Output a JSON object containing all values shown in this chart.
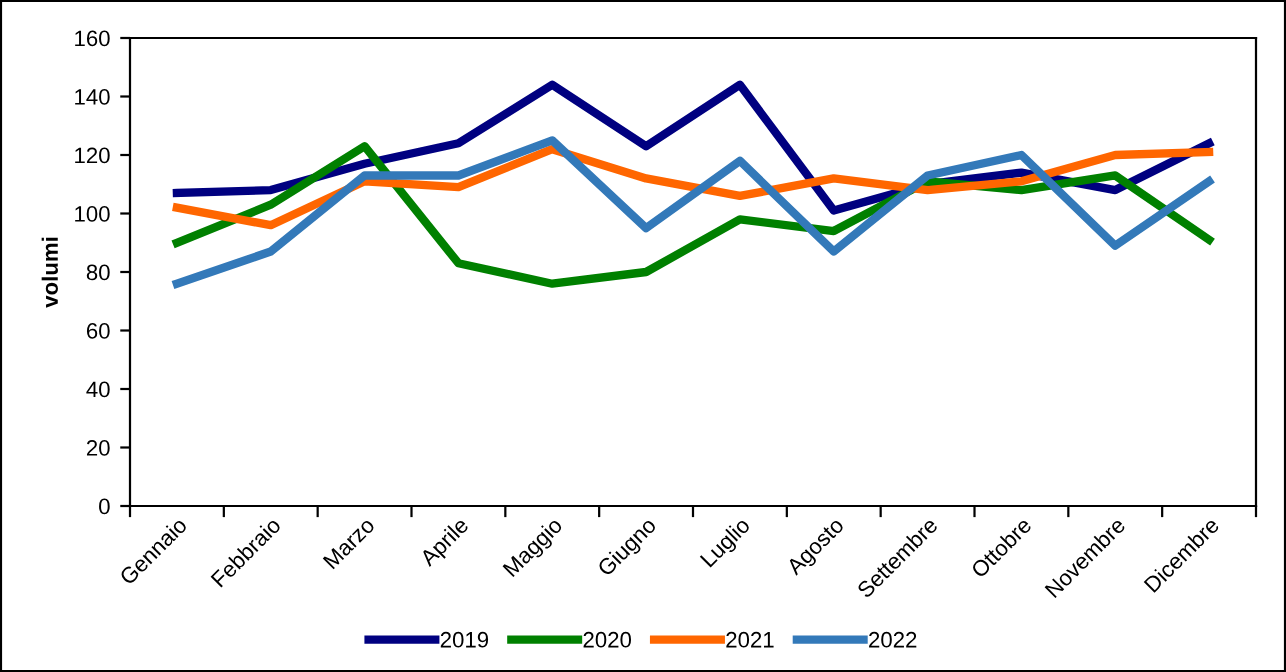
{
  "chart_data": {
    "type": "line",
    "ylabel": "volumi",
    "categories": [
      "Gennaio",
      "Febbraio",
      "Marzo",
      "Aprile",
      "Maggio",
      "Giugno",
      "Luglio",
      "Agosto",
      "Settembre",
      "Ottobre",
      "Novembre",
      "Dicembre"
    ],
    "series": [
      {
        "name": "2019",
        "color": "#000080",
        "values": [
          107,
          108,
          117,
          124,
          144,
          123,
          144,
          101,
          110,
          114,
          108,
          124
        ]
      },
      {
        "name": "2020",
        "color": "#008000",
        "values": [
          90,
          103,
          123,
          83,
          76,
          80,
          98,
          94,
          111,
          108,
          113,
          91
        ]
      },
      {
        "name": "2021",
        "color": "#ff6600",
        "values": [
          102,
          96,
          111,
          109,
          122,
          112,
          106,
          112,
          108,
          111,
          120,
          121
        ]
      },
      {
        "name": "2022",
        "color": "#3379b9",
        "values": [
          76,
          87,
          113,
          113,
          125,
          95,
          118,
          87,
          113,
          120,
          89,
          111
        ]
      }
    ],
    "ylim": [
      0,
      160
    ],
    "yticks": [
      0,
      20,
      40,
      60,
      80,
      100,
      120,
      140,
      160
    ],
    "grid": false,
    "legend": "bottom",
    "marker": "none",
    "line_style": "solid"
  }
}
